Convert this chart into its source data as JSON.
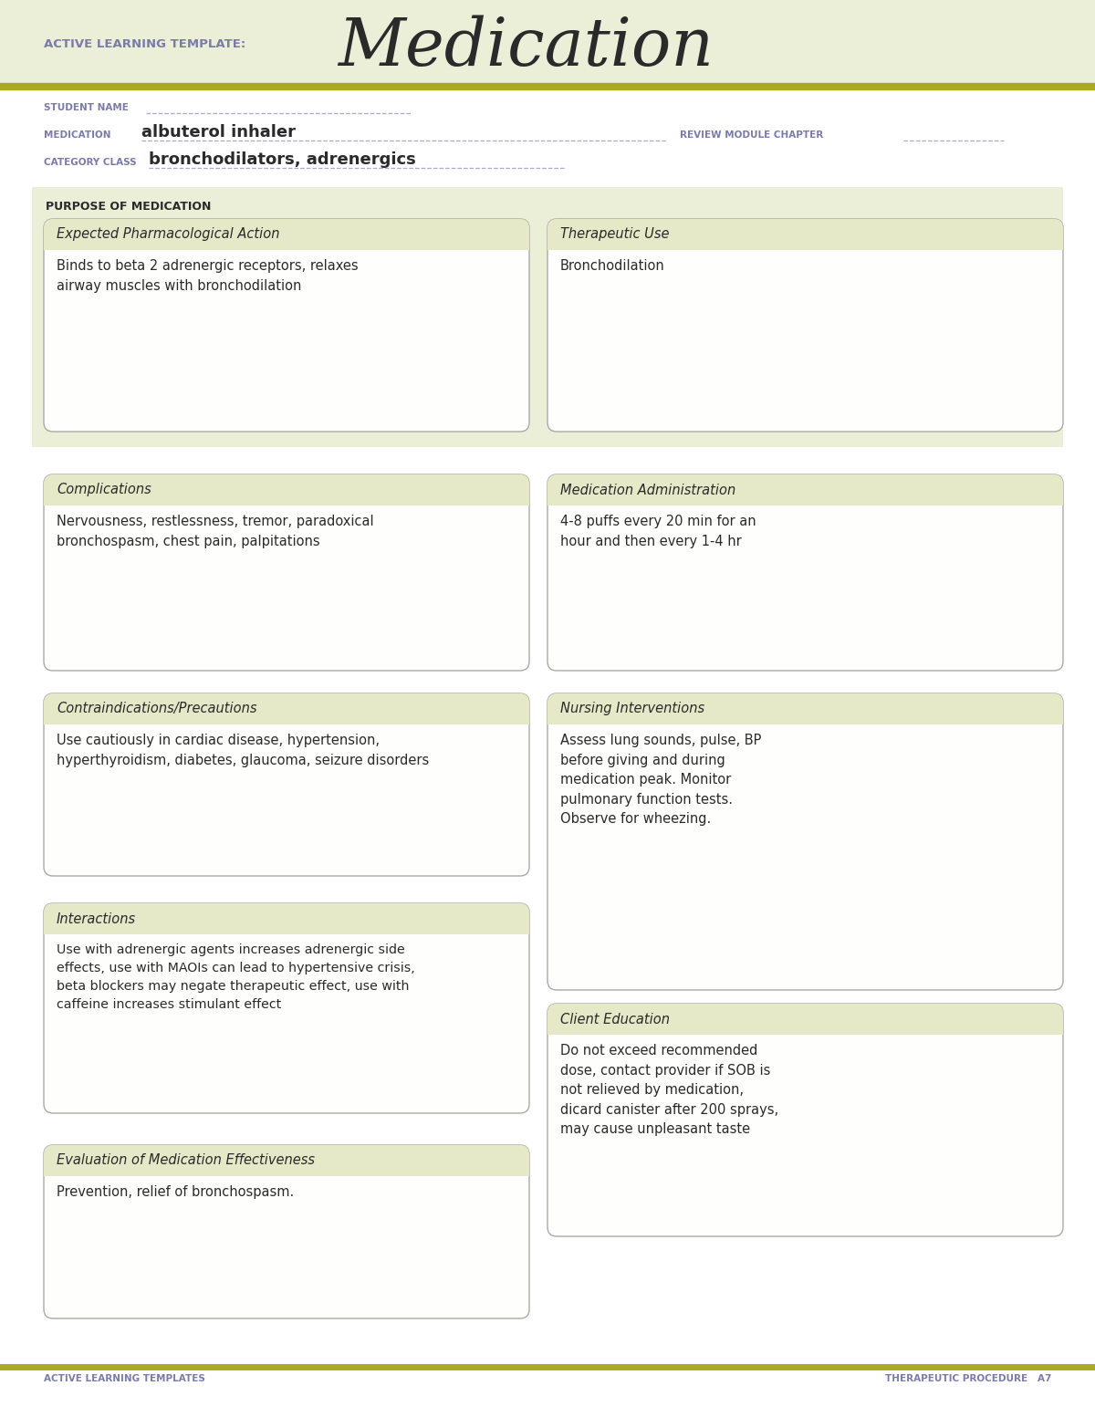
{
  "page_bg": "#FFFFFF",
  "header_bg": "#ECEFD8",
  "olive_line": "#AAAA22",
  "purple_label": "#7B7BAA",
  "dark_text": "#2A2A2A",
  "box_inner_bg": "#FEFEFD",
  "box_header_bg": "#E5E9C8",
  "box_border": "#AAAAAA",
  "purpose_bg": "#ECEFD8",
  "template_label": "ACTIVE LEARNING TEMPLATE:",
  "template_title": "Medication",
  "student_label": "STUDENT NAME",
  "medication_label": "MEDICATION",
  "medication_value": "albuterol inhaler",
  "review_label": "REVIEW MODULE CHAPTER",
  "category_label": "CATEGORY CLASS",
  "category_value": "bronchodilators, adrenergics",
  "purpose_label": "PURPOSE OF MEDICATION",
  "box1_title": "Expected Pharmacological Action",
  "box1_text": "Binds to beta 2 adrenergic receptors, relaxes\nairway muscles with bronchodilation",
  "box2_title": "Therapeutic Use",
  "box2_text": "Bronchodilation",
  "box3_title": "Complications",
  "box3_text": "Nervousness, restlessness, tremor, paradoxical\nbronchospasm, chest pain, palpitations",
  "box4_title": "Medication Administration",
  "box4_text": "4-8 puffs every 20 min for an\nhour and then every 1-4 hr",
  "box5_title": "Contraindications/Precautions",
  "box5_text": "Use cautiously in cardiac disease, hypertension,\nhyperthyroidism, diabetes, glaucoma, seizure disorders",
  "box6_title": "Nursing Interventions",
  "box6_text": "Assess lung sounds, pulse, BP\nbefore giving and during\nmedication peak. Monitor\npulmonary function tests.\nObserve for wheezing.",
  "box7_title": "Interactions",
  "box7_text": "Use with adrenergic agents increases adrenergic side\neffects, use with MAOIs can lead to hypertensive crisis,\nbeta blockers may negate therapeutic effect, use with\ncaffeine increases stimulant effect",
  "box8_title": "Client Education",
  "box8_text": "Do not exceed recommended\ndose, contact provider if SOB is\nnot relieved by medication,\ndicard canister after 200 sprays,\nmay cause unpleasant taste",
  "box9_title": "Evaluation of Medication Effectiveness",
  "box9_text": "Prevention, relief of bronchospasm.",
  "footer_left": "ACTIVE LEARNING TEMPLATES",
  "footer_right": "THERAPEUTIC PROCEDURE   A7"
}
